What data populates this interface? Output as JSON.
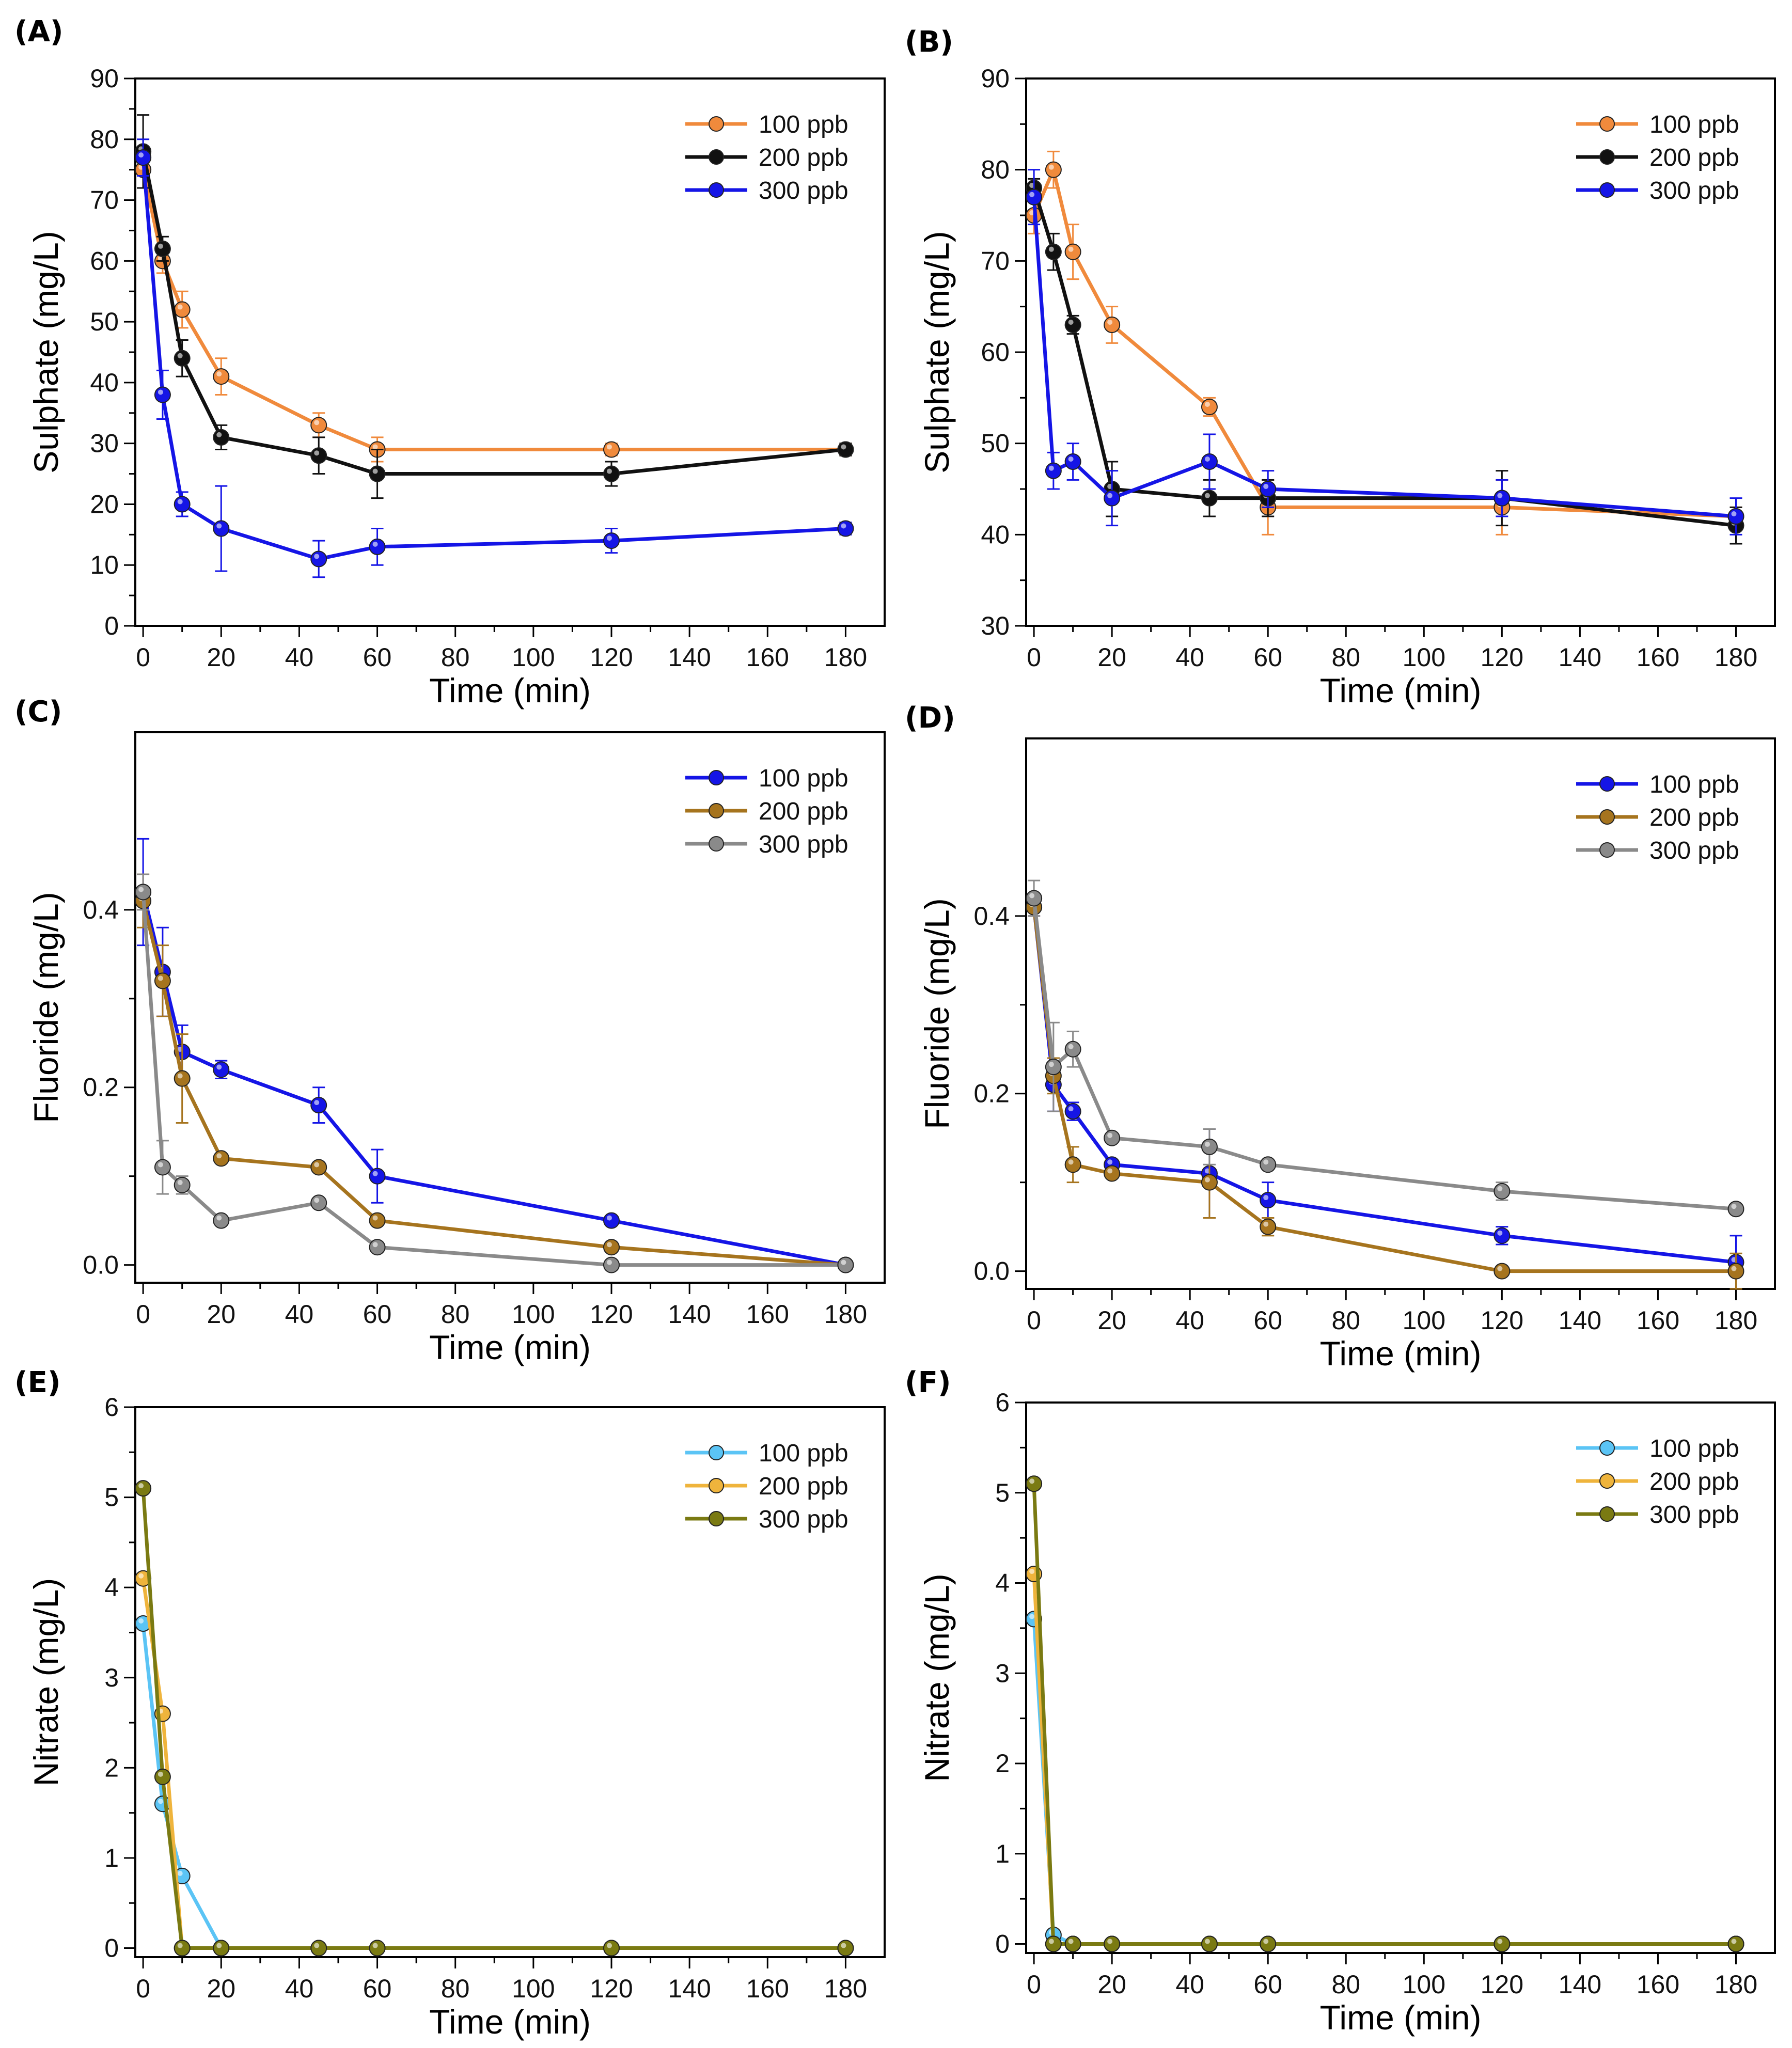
{
  "chart_data": [
    {
      "type": "line",
      "panel_label": "(A)",
      "xlabel": "Time (min)",
      "ylabel": "Sulphate (mg/L)",
      "xlim": [
        -2,
        190
      ],
      "ylim": [
        0,
        90
      ],
      "xticks": [
        0,
        20,
        40,
        60,
        80,
        100,
        120,
        140,
        160,
        180
      ],
      "yticks": [
        0,
        10,
        20,
        30,
        40,
        50,
        60,
        70,
        80,
        90
      ],
      "x": [
        0,
        5,
        10,
        20,
        45,
        60,
        120,
        180
      ],
      "legend_position": "top-right",
      "series": [
        {
          "name": "100 ppb",
          "color": "#F08A3C",
          "values": [
            75,
            60,
            52,
            41,
            33,
            29,
            29,
            29
          ],
          "errors": [
            3,
            2,
            3,
            3,
            2,
            2,
            1,
            1
          ]
        },
        {
          "name": "200 ppb",
          "color": "#111111",
          "values": [
            78,
            62,
            44,
            31,
            28,
            25,
            25,
            29
          ],
          "errors": [
            6,
            2,
            3,
            2,
            3,
            4,
            2,
            1
          ]
        },
        {
          "name": "300 ppb",
          "color": "#1515E6",
          "values": [
            77,
            38,
            20,
            16,
            11,
            13,
            14,
            16
          ],
          "errors": [
            3,
            4,
            2,
            7,
            3,
            3,
            2,
            1
          ]
        }
      ]
    },
    {
      "type": "line",
      "panel_label": "(B)",
      "xlabel": "Time (min)",
      "ylabel": "Sulphate (mg/L)",
      "xlim": [
        -2,
        190
      ],
      "ylim": [
        30,
        90
      ],
      "xticks": [
        0,
        20,
        40,
        60,
        80,
        100,
        120,
        140,
        160,
        180
      ],
      "yticks": [
        30,
        40,
        50,
        60,
        70,
        80,
        90
      ],
      "x": [
        0,
        5,
        10,
        20,
        45,
        60,
        120,
        180
      ],
      "legend_position": "top-right",
      "series": [
        {
          "name": "100 ppb",
          "color": "#F08A3C",
          "values": [
            75,
            80,
            71,
            63,
            54,
            43,
            43,
            42
          ],
          "errors": [
            2,
            2,
            3,
            2,
            1,
            3,
            3,
            1
          ]
        },
        {
          "name": "200 ppb",
          "color": "#111111",
          "values": [
            78,
            71,
            63,
            45,
            44,
            44,
            44,
            41
          ],
          "errors": [
            1,
            2,
            1,
            3,
            2,
            2,
            3,
            2
          ]
        },
        {
          "name": "300 ppb",
          "color": "#1515E6",
          "values": [
            77,
            47,
            48,
            44,
            48,
            45,
            44,
            42
          ],
          "errors": [
            3,
            2,
            2,
            3,
            3,
            2,
            2,
            2
          ]
        }
      ]
    },
    {
      "type": "line",
      "panel_label": "(C)",
      "xlabel": "Time (min)",
      "ylabel": "Fluoride  (mg/L)",
      "xlim": [
        -2,
        190
      ],
      "ylim": [
        -0.02,
        0.6
      ],
      "xticks": [
        0,
        20,
        40,
        60,
        80,
        100,
        120,
        140,
        160,
        180
      ],
      "yticks": [
        0.0,
        0.2,
        0.4
      ],
      "ytick_labels": [
        "0.0",
        "0.2",
        "0.4"
      ],
      "x": [
        0,
        5,
        10,
        20,
        45,
        60,
        120,
        180
      ],
      "legend_position": "top-right",
      "series": [
        {
          "name": "100 ppb",
          "color": "#1515E6",
          "values": [
            0.42,
            0.33,
            0.24,
            0.22,
            0.18,
            0.1,
            0.05,
            0.0
          ],
          "errors": [
            0.06,
            0.05,
            0.03,
            0.01,
            0.02,
            0.03,
            0.005,
            0.0
          ]
        },
        {
          "name": "200 ppb",
          "color": "#A6741E",
          "values": [
            0.41,
            0.32,
            0.21,
            0.12,
            0.11,
            0.05,
            0.02,
            0.0
          ],
          "errors": [
            0.03,
            0.04,
            0.05,
            0.005,
            0.005,
            0.005,
            0.005,
            0.0
          ]
        },
        {
          "name": "300 ppb",
          "color": "#8A8A8A",
          "values": [
            0.42,
            0.11,
            0.09,
            0.05,
            0.07,
            0.02,
            0.0,
            0.0
          ],
          "errors": [
            0.02,
            0.03,
            0.01,
            0.005,
            0.005,
            0.005,
            0.0,
            0.0
          ]
        }
      ]
    },
    {
      "type": "line",
      "panel_label": "(D)",
      "xlabel": "Time (min)",
      "ylabel": "Fluoride  (mg/L)",
      "xlim": [
        -2,
        190
      ],
      "ylim": [
        -0.02,
        0.6
      ],
      "xticks": [
        0,
        20,
        40,
        60,
        80,
        100,
        120,
        140,
        160,
        180
      ],
      "yticks": [
        0.0,
        0.2,
        0.4
      ],
      "ytick_labels": [
        "0.0",
        "0.2",
        "0.4"
      ],
      "x": [
        0,
        5,
        10,
        20,
        45,
        60,
        120,
        180
      ],
      "legend_position": "top-right",
      "series": [
        {
          "name": "100 ppb",
          "color": "#1515E6",
          "values": [
            0.41,
            0.21,
            0.18,
            0.12,
            0.11,
            0.08,
            0.04,
            0.01
          ],
          "errors": [
            0.01,
            0.03,
            0.01,
            0.005,
            0.05,
            0.02,
            0.01,
            0.03
          ]
        },
        {
          "name": "200 ppb",
          "color": "#A6741E",
          "values": [
            0.41,
            0.22,
            0.12,
            0.11,
            0.1,
            0.05,
            0.0,
            0.0
          ],
          "errors": [
            0.01,
            0.02,
            0.02,
            0.005,
            0.04,
            0.01,
            0.0,
            0.02
          ]
        },
        {
          "name": "300 ppb",
          "color": "#8A8A8A",
          "values": [
            0.42,
            0.23,
            0.25,
            0.15,
            0.14,
            0.12,
            0.09,
            0.07
          ],
          "errors": [
            0.02,
            0.05,
            0.02,
            0.005,
            0.02,
            0.005,
            0.01,
            0.005
          ]
        }
      ]
    },
    {
      "type": "line",
      "panel_label": "(E)",
      "xlabel": "Time (min)",
      "ylabel": "Nitrate (mg/L)",
      "xlim": [
        -2,
        190
      ],
      "ylim": [
        -0.1,
        6
      ],
      "xticks": [
        0,
        20,
        40,
        60,
        80,
        100,
        120,
        140,
        160,
        180
      ],
      "yticks": [
        0,
        1,
        2,
        3,
        4,
        5,
        6
      ],
      "x": [
        0,
        5,
        10,
        20,
        45,
        60,
        120,
        180
      ],
      "legend_position": "top-right",
      "series": [
        {
          "name": "100 ppb",
          "color": "#5BC4F5",
          "values": [
            3.6,
            1.6,
            0.8,
            0.0,
            null,
            null,
            null,
            null
          ],
          "errors": []
        },
        {
          "name": "200 ppb",
          "color": "#EFB43C",
          "values": [
            4.1,
            2.6,
            0.0,
            0.0,
            0.0,
            0.0,
            0.0,
            0.0
          ],
          "errors": []
        },
        {
          "name": "300 ppb",
          "color": "#7A7A12",
          "values": [
            5.1,
            1.9,
            0.0,
            0.0,
            0.0,
            0.0,
            0.0,
            0.0
          ],
          "errors": []
        }
      ]
    },
    {
      "type": "line",
      "panel_label": "(F)",
      "xlabel": "Time (min)",
      "ylabel": "Nitrate (mg/L)",
      "xlim": [
        -2,
        190
      ],
      "ylim": [
        -0.1,
        6
      ],
      "xticks": [
        0,
        20,
        40,
        60,
        80,
        100,
        120,
        140,
        160,
        180
      ],
      "yticks": [
        0,
        1,
        2,
        3,
        4,
        5,
        6
      ],
      "x": [
        0,
        5,
        10,
        20,
        45,
        60,
        120,
        180
      ],
      "legend_position": "top-right",
      "series": [
        {
          "name": "100 ppb",
          "color": "#5BC4F5",
          "values": [
            3.6,
            0.1,
            0.0,
            0.0,
            0.0,
            0.0,
            0.0,
            0.0
          ],
          "errors": []
        },
        {
          "name": "200 ppb",
          "color": "#EFB43C",
          "values": [
            4.1,
            0.0,
            0.0,
            0.0,
            0.0,
            0.0,
            0.0,
            0.0
          ],
          "errors": []
        },
        {
          "name": "300 ppb",
          "color": "#7A7A12",
          "values": [
            5.1,
            0.0,
            0.0,
            0.0,
            0.0,
            0.0,
            0.0,
            0.0
          ],
          "errors": []
        }
      ]
    }
  ]
}
